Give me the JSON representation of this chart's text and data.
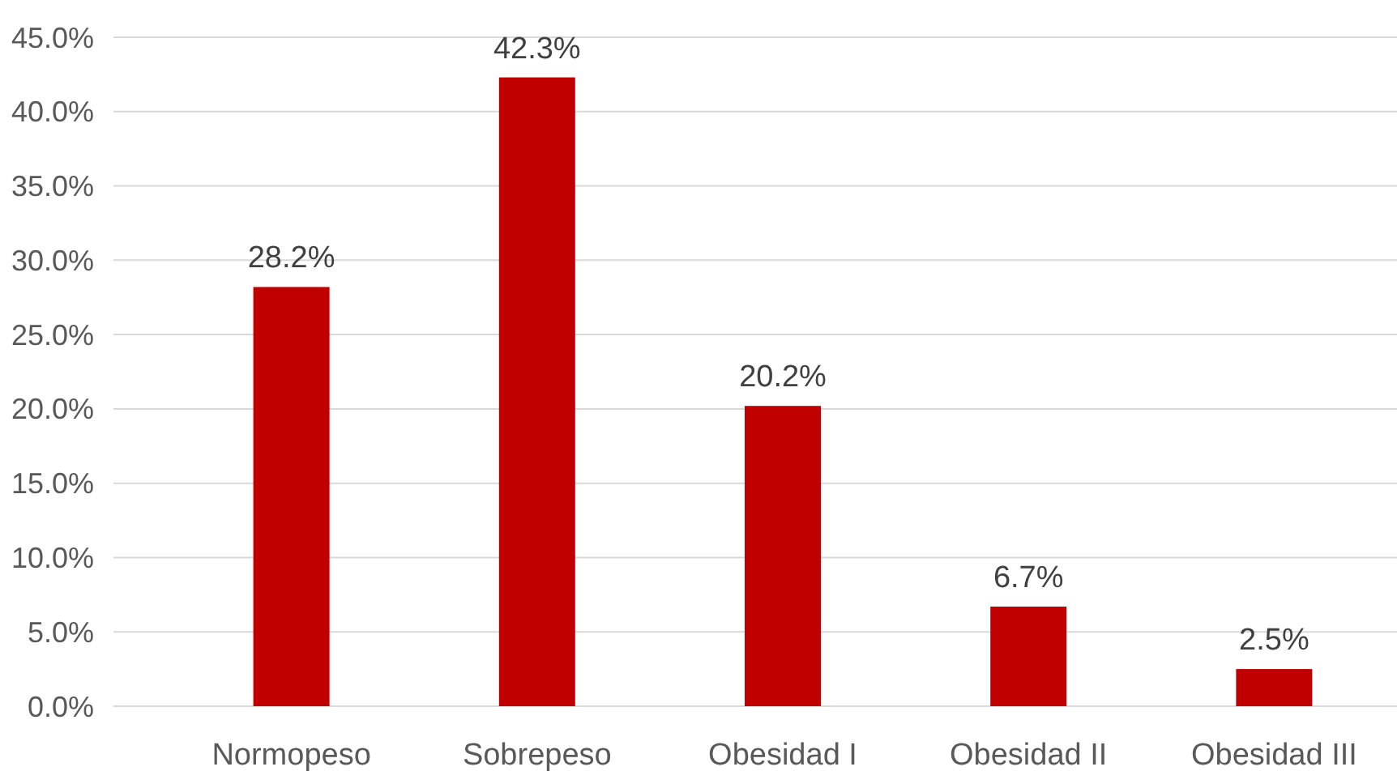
{
  "chart_data": {
    "type": "bar",
    "categories": [
      "Normopeso",
      "Sobrepeso",
      "Obesidad I",
      "Obesidad II",
      "Obesidad III"
    ],
    "values": [
      28.2,
      42.3,
      20.2,
      6.7,
      2.5
    ],
    "color": "#c00000",
    "value_labels": [
      "28.2%",
      "42.3%",
      "20.2%",
      "6.7%",
      "2.5%"
    ],
    "ylim": [
      0,
      45
    ],
    "yticks": [
      {
        "value": 0,
        "label": "0.0%"
      },
      {
        "value": 5,
        "label": "5.0%"
      },
      {
        "value": 10,
        "label": "10.0%"
      },
      {
        "value": 15,
        "label": "15.0%"
      },
      {
        "value": 20,
        "label": "20.0%"
      },
      {
        "value": 25,
        "label": "25.0%"
      },
      {
        "value": 30,
        "label": "30.0%"
      },
      {
        "value": 35,
        "label": "35.0%"
      },
      {
        "value": 40,
        "label": "40.0%"
      },
      {
        "value": 45,
        "label": "45.0%"
      }
    ],
    "grid": "y"
  }
}
